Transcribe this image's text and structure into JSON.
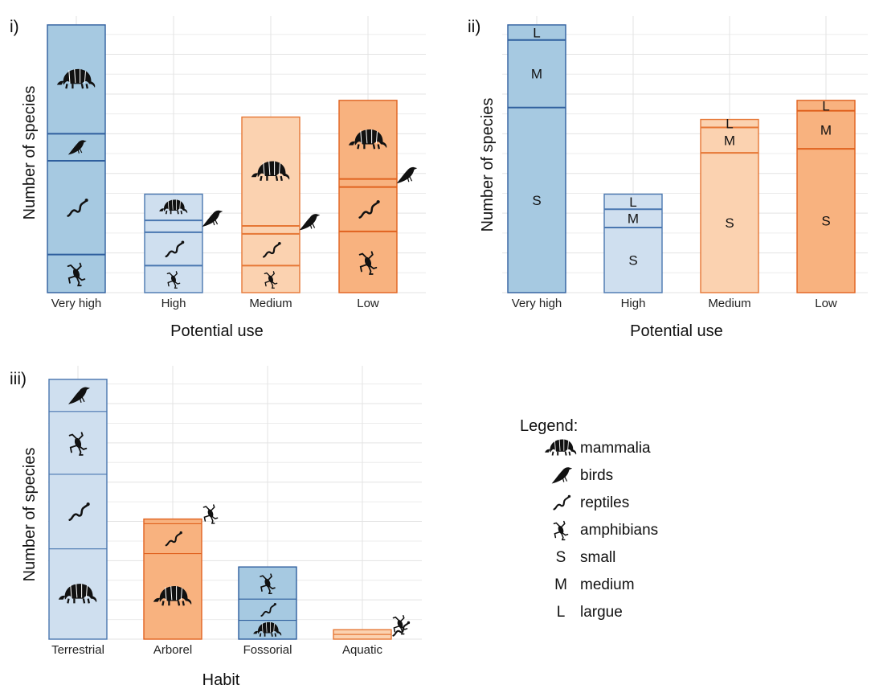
{
  "colors": {
    "blue_dark_fill": "#a6c9e1",
    "blue_dark_stroke": "#2f5f9e",
    "blue_light_fill": "#cfdfef",
    "blue_light_stroke": "#4a77b0",
    "orange_light_fill": "#fbd2b0",
    "orange_light_stroke": "#e67735",
    "orange_dark_fill": "#f8b27f",
    "orange_dark_stroke": "#e0621f",
    "icon": "#111111"
  },
  "chart_data": [
    {
      "type": "bar",
      "stacked": true,
      "label": "i)",
      "xlabel": "Potential use",
      "ylabel": "Number of species",
      "categories": [
        "Very high",
        "High",
        "Medium",
        "Low"
      ],
      "segment_order_bottom_to_top": [
        "amphibians",
        "reptiles",
        "birds",
        "mammalia"
      ],
      "values": {
        "amphibians": [
          48,
          34,
          34,
          77
        ],
        "reptiles": [
          118,
          42,
          40,
          56
        ],
        "birds": [
          34,
          15,
          10,
          10
        ],
        "mammalia": [
          137,
          33,
          137,
          99
        ]
      },
      "ylim": [
        0,
        340
      ],
      "grid": true
    },
    {
      "type": "bar",
      "stacked": true,
      "label": "ii)",
      "xlabel": "Potential use",
      "ylabel": "Number of species",
      "categories": [
        "Very high",
        "High",
        "Medium",
        "Low"
      ],
      "segment_order_bottom_to_top": [
        "small",
        "medium",
        "large"
      ],
      "segment_letters": [
        "S",
        "M",
        "L"
      ],
      "values": {
        "small": [
          233,
          82,
          176,
          181
        ],
        "medium": [
          85,
          23,
          32,
          48
        ],
        "large": [
          19,
          19,
          10,
          13
        ]
      },
      "ylim": [
        0,
        340
      ],
      "grid": true
    },
    {
      "type": "bar",
      "stacked": true,
      "label": "iii)",
      "xlabel": "Habit",
      "ylabel": "Number of species",
      "categories": [
        "Terrestrial",
        "Arborel",
        "Fossorial",
        "Aquatic"
      ],
      "segment_order_bottom_to_top": [
        "mammalia",
        "reptiles",
        "amphibians",
        "birds"
      ],
      "values": {
        "mammalia": [
          115,
          109,
          24,
          0
        ],
        "reptiles": [
          95,
          38,
          27,
          6
        ],
        "amphibians": [
          80,
          6,
          41,
          6
        ],
        "birds": [
          41,
          0,
          0,
          0
        ]
      },
      "ylim": [
        0,
        340
      ],
      "grid": true
    }
  ],
  "legend": {
    "title": "Legend:",
    "items": [
      {
        "glyph": "",
        "icon": "armadillo-icon",
        "label": "mammalia"
      },
      {
        "glyph": "",
        "icon": "bird-icon",
        "label": "birds"
      },
      {
        "glyph": "",
        "icon": "snake-icon",
        "label": "reptiles"
      },
      {
        "glyph": "",
        "icon": "frog-icon",
        "label": "amphibians"
      },
      {
        "glyph": "S",
        "icon": "",
        "label": "small"
      },
      {
        "glyph": "M",
        "icon": "",
        "label": "medium"
      },
      {
        "glyph": "L",
        "icon": "",
        "label": "largue"
      }
    ]
  }
}
